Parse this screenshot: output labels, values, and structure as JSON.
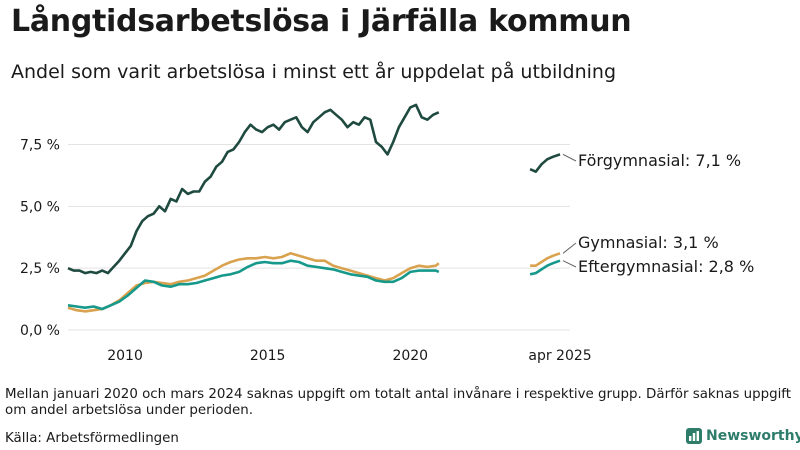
{
  "header": {
    "title": "Långtidsarbetslösa i Järfälla kommun",
    "subtitle": "Andel som varit arbetslösa i minst ett år uppdelat på utbildning"
  },
  "footer": {
    "note": "Mellan januari 2020 och mars 2024 saknas uppgift om totalt antal invånare i respektive grupp. Därför saknas uppgift om andel arbetslösa under perioden.",
    "source": "Källa: Arbetsförmedlingen",
    "brand": "Newsworthy"
  },
  "colors": {
    "forgymnasial": "#1f4a3f",
    "gymnasial": "#d9a24e",
    "eftergymnasial": "#16998b",
    "grid": "#e3e3e3",
    "brand": "#2e7d6b"
  },
  "chart_data": {
    "type": "line",
    "x_unit": "year",
    "xlim": [
      2008.0,
      2025.6
    ],
    "ylim": [
      0,
      9.5
    ],
    "y_ticks": [
      {
        "value": 0,
        "label": "0,0 %"
      },
      {
        "value": 2.5,
        "label": "2,5 %"
      },
      {
        "value": 5.0,
        "label": "5,0 %"
      },
      {
        "value": 7.5,
        "label": "7,5 %"
      }
    ],
    "x_ticks": [
      {
        "value": 2010,
        "label": "2010"
      },
      {
        "value": 2015,
        "label": "2015"
      },
      {
        "value": 2020,
        "label": "2020"
      },
      {
        "value": 2025.25,
        "label": "apr 2025"
      }
    ],
    "grid": "horizontal",
    "series": [
      {
        "name": "Förgymnasial",
        "label": "Förgymnasial: 7,1 %",
        "color": "#1f4a3f",
        "segments": [
          [
            [
              2008.0,
              2.5
            ],
            [
              2008.2,
              2.4
            ],
            [
              2008.4,
              2.4
            ],
            [
              2008.6,
              2.3
            ],
            [
              2008.8,
              2.35
            ],
            [
              2009.0,
              2.3
            ],
            [
              2009.2,
              2.4
            ],
            [
              2009.4,
              2.3
            ],
            [
              2009.6,
              2.55
            ],
            [
              2009.8,
              2.8
            ],
            [
              2010.0,
              3.1
            ],
            [
              2010.2,
              3.4
            ],
            [
              2010.4,
              4.0
            ],
            [
              2010.6,
              4.4
            ],
            [
              2010.8,
              4.6
            ],
            [
              2011.0,
              4.7
            ],
            [
              2011.2,
              5.0
            ],
            [
              2011.4,
              4.8
            ],
            [
              2011.6,
              5.3
            ],
            [
              2011.8,
              5.2
            ],
            [
              2012.0,
              5.7
            ],
            [
              2012.2,
              5.5
            ],
            [
              2012.4,
              5.6
            ],
            [
              2012.6,
              5.6
            ],
            [
              2012.8,
              6.0
            ],
            [
              2013.0,
              6.2
            ],
            [
              2013.2,
              6.6
            ],
            [
              2013.4,
              6.8
            ],
            [
              2013.6,
              7.2
            ],
            [
              2013.8,
              7.3
            ],
            [
              2014.0,
              7.6
            ],
            [
              2014.2,
              8.0
            ],
            [
              2014.4,
              8.3
            ],
            [
              2014.6,
              8.1
            ],
            [
              2014.8,
              8.0
            ],
            [
              2015.0,
              8.2
            ],
            [
              2015.2,
              8.3
            ],
            [
              2015.4,
              8.1
            ],
            [
              2015.6,
              8.4
            ],
            [
              2015.8,
              8.5
            ],
            [
              2016.0,
              8.6
            ],
            [
              2016.2,
              8.2
            ],
            [
              2016.4,
              8.0
            ],
            [
              2016.6,
              8.4
            ],
            [
              2016.8,
              8.6
            ],
            [
              2017.0,
              8.8
            ],
            [
              2017.2,
              8.9
            ],
            [
              2017.4,
              8.7
            ],
            [
              2017.6,
              8.5
            ],
            [
              2017.8,
              8.2
            ],
            [
              2018.0,
              8.4
            ],
            [
              2018.2,
              8.3
            ],
            [
              2018.4,
              8.6
            ],
            [
              2018.6,
              8.5
            ],
            [
              2018.8,
              7.6
            ],
            [
              2019.0,
              7.4
            ],
            [
              2019.2,
              7.1
            ],
            [
              2019.4,
              7.6
            ],
            [
              2019.6,
              8.2
            ],
            [
              2019.8,
              8.6
            ],
            [
              2020.0,
              9.0
            ],
            [
              2020.2,
              9.1
            ],
            [
              2020.4,
              8.6
            ],
            [
              2020.6,
              8.5
            ],
            [
              2020.8,
              8.7
            ],
            [
              2021.0,
              8.8
            ]
          ],
          [
            [
              2024.2,
              6.5
            ],
            [
              2024.4,
              6.4
            ],
            [
              2024.6,
              6.7
            ],
            [
              2024.8,
              6.9
            ],
            [
              2025.0,
              7.0
            ],
            [
              2025.25,
              7.1
            ]
          ]
        ]
      },
      {
        "name": "Gymnasial",
        "label": "Gymnasial: 3,1 %",
        "color": "#d9a24e",
        "segments": [
          [
            [
              2008.0,
              0.9
            ],
            [
              2008.3,
              0.8
            ],
            [
              2008.6,
              0.75
            ],
            [
              2008.9,
              0.8
            ],
            [
              2009.2,
              0.85
            ],
            [
              2009.5,
              1.0
            ],
            [
              2009.8,
              1.2
            ],
            [
              2010.1,
              1.5
            ],
            [
              2010.4,
              1.8
            ],
            [
              2010.7,
              1.9
            ],
            [
              2011.0,
              1.95
            ],
            [
              2011.3,
              1.9
            ],
            [
              2011.6,
              1.85
            ],
            [
              2011.9,
              1.95
            ],
            [
              2012.2,
              2.0
            ],
            [
              2012.5,
              2.1
            ],
            [
              2012.8,
              2.2
            ],
            [
              2013.1,
              2.4
            ],
            [
              2013.4,
              2.6
            ],
            [
              2013.7,
              2.75
            ],
            [
              2014.0,
              2.85
            ],
            [
              2014.3,
              2.9
            ],
            [
              2014.6,
              2.9
            ],
            [
              2014.9,
              2.95
            ],
            [
              2015.2,
              2.9
            ],
            [
              2015.5,
              2.95
            ],
            [
              2015.8,
              3.1
            ],
            [
              2016.1,
              3.0
            ],
            [
              2016.4,
              2.9
            ],
            [
              2016.7,
              2.8
            ],
            [
              2017.0,
              2.8
            ],
            [
              2017.3,
              2.6
            ],
            [
              2017.6,
              2.5
            ],
            [
              2017.9,
              2.4
            ],
            [
              2018.2,
              2.3
            ],
            [
              2018.5,
              2.2
            ],
            [
              2018.8,
              2.1
            ],
            [
              2019.1,
              2.0
            ],
            [
              2019.4,
              2.1
            ],
            [
              2019.7,
              2.3
            ],
            [
              2020.0,
              2.5
            ],
            [
              2020.3,
              2.6
            ],
            [
              2020.6,
              2.55
            ],
            [
              2020.9,
              2.6
            ],
            [
              2021.0,
              2.7
            ]
          ],
          [
            [
              2024.2,
              2.6
            ],
            [
              2024.4,
              2.6
            ],
            [
              2024.6,
              2.75
            ],
            [
              2024.8,
              2.9
            ],
            [
              2025.0,
              3.0
            ],
            [
              2025.25,
              3.1
            ]
          ]
        ]
      },
      {
        "name": "Eftergymnasial",
        "label": "Eftergymnasial: 2,8 %",
        "color": "#16998b",
        "segments": [
          [
            [
              2008.0,
              1.0
            ],
            [
              2008.3,
              0.95
            ],
            [
              2008.6,
              0.9
            ],
            [
              2008.9,
              0.95
            ],
            [
              2009.2,
              0.85
            ],
            [
              2009.5,
              1.0
            ],
            [
              2009.8,
              1.15
            ],
            [
              2010.1,
              1.4
            ],
            [
              2010.4,
              1.7
            ],
            [
              2010.7,
              2.0
            ],
            [
              2011.0,
              1.95
            ],
            [
              2011.3,
              1.8
            ],
            [
              2011.6,
              1.75
            ],
            [
              2011.9,
              1.85
            ],
            [
              2012.2,
              1.85
            ],
            [
              2012.5,
              1.9
            ],
            [
              2012.8,
              2.0
            ],
            [
              2013.1,
              2.1
            ],
            [
              2013.4,
              2.2
            ],
            [
              2013.7,
              2.25
            ],
            [
              2014.0,
              2.35
            ],
            [
              2014.3,
              2.55
            ],
            [
              2014.6,
              2.7
            ],
            [
              2014.9,
              2.75
            ],
            [
              2015.2,
              2.7
            ],
            [
              2015.5,
              2.7
            ],
            [
              2015.8,
              2.8
            ],
            [
              2016.1,
              2.75
            ],
            [
              2016.4,
              2.6
            ],
            [
              2016.7,
              2.55
            ],
            [
              2017.0,
              2.5
            ],
            [
              2017.3,
              2.45
            ],
            [
              2017.6,
              2.35
            ],
            [
              2017.9,
              2.25
            ],
            [
              2018.2,
              2.2
            ],
            [
              2018.5,
              2.15
            ],
            [
              2018.8,
              2.0
            ],
            [
              2019.1,
              1.95
            ],
            [
              2019.4,
              1.95
            ],
            [
              2019.7,
              2.1
            ],
            [
              2020.0,
              2.35
            ],
            [
              2020.3,
              2.4
            ],
            [
              2020.6,
              2.4
            ],
            [
              2020.9,
              2.4
            ],
            [
              2021.0,
              2.35
            ]
          ],
          [
            [
              2024.2,
              2.25
            ],
            [
              2024.4,
              2.3
            ],
            [
              2024.6,
              2.45
            ],
            [
              2024.8,
              2.6
            ],
            [
              2025.0,
              2.7
            ],
            [
              2025.25,
              2.8
            ]
          ]
        ]
      }
    ]
  }
}
